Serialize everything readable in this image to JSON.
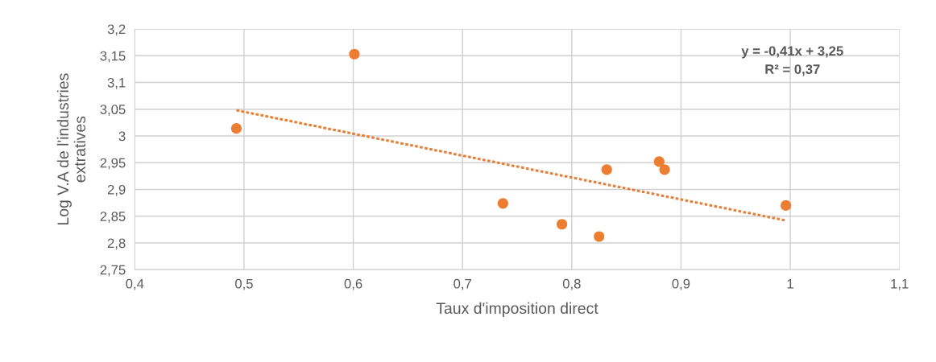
{
  "chart_data": {
    "type": "scatter",
    "xlabel": "Taux d'imposition direct",
    "ylabel": "Log V.A de l'industries\nextratives",
    "xlim": [
      0.4,
      1.1
    ],
    "xticks": [
      {
        "value": 0.4,
        "label": "0,4"
      },
      {
        "value": 0.5,
        "label": "0,5"
      },
      {
        "value": 0.6,
        "label": "0,6"
      },
      {
        "value": 0.7,
        "label": "0,7"
      },
      {
        "value": 0.8,
        "label": "0,8"
      },
      {
        "value": 0.9,
        "label": "0,9"
      },
      1,
      {
        "value": 1.1,
        "label": "1,1"
      }
    ],
    "ylim": [
      2.75,
      3.2
    ],
    "yticks": [
      {
        "value": 2.75,
        "label": "2,75"
      },
      {
        "value": 2.8,
        "label": "2,8"
      },
      {
        "value": 2.85,
        "label": "2,85"
      },
      {
        "value": 2.9,
        "label": "2,9"
      },
      {
        "value": 2.95,
        "label": "2,95"
      },
      3,
      {
        "value": 3.05,
        "label": "3,05"
      },
      {
        "value": 3.1,
        "label": "3,1"
      },
      {
        "value": 3.15,
        "label": "3,15"
      },
      {
        "value": 3.2,
        "label": "3,2"
      }
    ],
    "grid": true,
    "series": [
      {
        "marker": "circle",
        "color": "#ed7d31",
        "x": [
          0.493,
          0.601,
          0.737,
          0.791,
          0.825,
          0.832,
          0.88,
          0.885,
          0.996
        ],
        "values": [
          3.014,
          3.153,
          2.874,
          2.835,
          2.812,
          2.937,
          2.952,
          2.937,
          2.87
        ]
      },
      {
        "type": "line",
        "color": "#ed7d31",
        "line_style": "dotted",
        "x": [
          0.493,
          0.996
        ],
        "values": [
          3.048,
          2.842
        ]
      }
    ],
    "annotations": [
      "y = -0,41x + 3,25\nR² = 0,37"
    ]
  }
}
